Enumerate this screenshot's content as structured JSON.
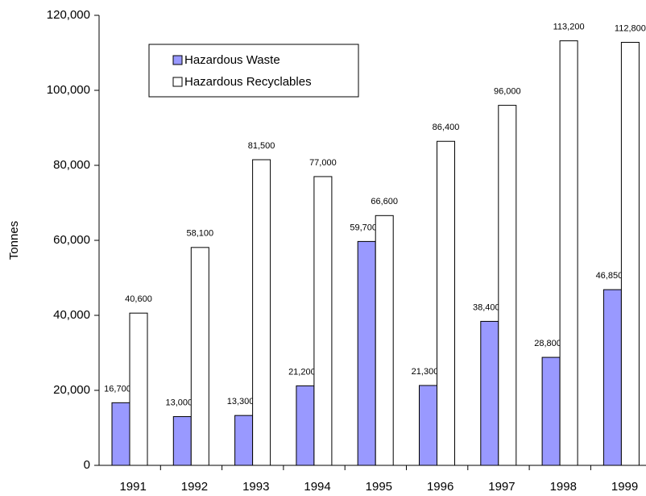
{
  "chart_data": {
    "type": "bar",
    "y_label": "Tonnes",
    "categories": [
      "1991",
      "1992",
      "1993",
      "1994",
      "1995",
      "1996",
      "1997",
      "1998",
      "1999"
    ],
    "series": [
      {
        "name": "Hazardous Waste",
        "color": "#9999ff",
        "values": [
          16700,
          13000,
          13300,
          21200,
          59700,
          21300,
          38400,
          28800,
          46850
        ],
        "value_labels": [
          "16,700",
          "13,000",
          "13,300",
          "21,200",
          "59,700",
          "21,300",
          "38,400",
          "28,800",
          "46,850"
        ]
      },
      {
        "name": "Hazardous Recyclables",
        "color": "#ffffff",
        "values": [
          40600,
          58100,
          81500,
          77000,
          66600,
          86400,
          96000,
          113200,
          112800
        ],
        "value_labels": [
          "40,600",
          "58,100",
          "81,500",
          "77,000",
          "66,600",
          "86,400",
          "96,000",
          "113,200",
          "112,800"
        ]
      }
    ],
    "ylim": [
      0,
      120000
    ],
    "yticks": [
      0,
      {
        "value": 20000,
        "label": "20,000"
      },
      {
        "value": 40000,
        "label": "40,000"
      },
      {
        "value": 60000,
        "label": "60,000"
      },
      {
        "value": 80000,
        "label": "80,000"
      },
      {
        "value": 100000,
        "label": "100,000"
      },
      {
        "value": 120000,
        "label": "120,000"
      }
    ],
    "legend": "upper left",
    "grid": false
  }
}
